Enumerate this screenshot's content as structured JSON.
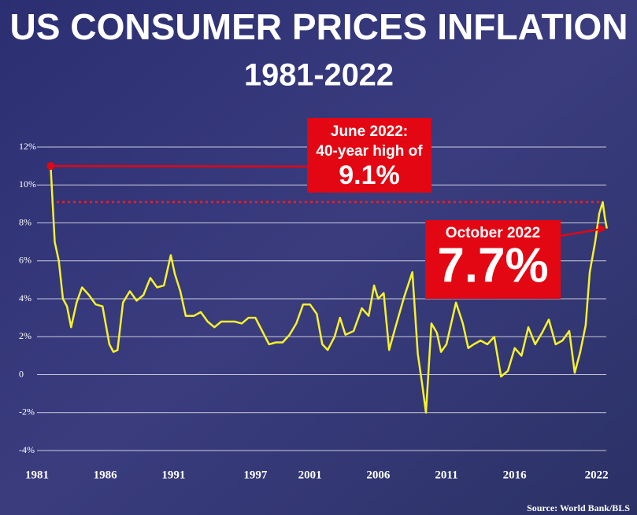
{
  "chart_data": {
    "type": "line",
    "title": "US CONSUMER PRICES INFLATION",
    "subtitle": "1981-2022",
    "source": "Source: World Bank/BLS",
    "annotations": [
      "June 2022:",
      "40-year high of",
      "9.1%",
      "October 2022",
      "7.7%"
    ],
    "reference_value": 9.1,
    "color": "#f7f22a",
    "x": [
      1982.0,
      1982.3,
      1982.6,
      1982.9,
      1983.2,
      1983.5,
      1983.9,
      1984.3,
      1984.8,
      1985.3,
      1985.8,
      1986.3,
      1986.6,
      1986.9,
      1987.3,
      1987.8,
      1988.3,
      1988.8,
      1989.3,
      1989.8,
      1990.3,
      1990.8,
      1991.1,
      1991.5,
      1991.9,
      1992.5,
      1993.0,
      1993.5,
      1994.0,
      1994.5,
      1995.0,
      1995.5,
      1996.0,
      1996.5,
      1997.0,
      1997.5,
      1998.0,
      1998.5,
      1999.0,
      1999.5,
      2000.0,
      2000.5,
      2001.0,
      2001.5,
      2001.9,
      2002.3,
      2002.8,
      2003.2,
      2003.6,
      2004.2,
      2004.8,
      2005.3,
      2005.7,
      2006.0,
      2006.4,
      2006.8,
      2007.3,
      2007.9,
      2008.5,
      2008.9,
      2009.2,
      2009.5,
      2009.9,
      2010.3,
      2010.6,
      2011.0,
      2011.7,
      2012.2,
      2012.6,
      2013.0,
      2013.5,
      2014.0,
      2014.5,
      2015.0,
      2015.5,
      2016.0,
      2016.5,
      2017.0,
      2017.5,
      2018.0,
      2018.5,
      2019.0,
      2019.5,
      2020.0,
      2020.4,
      2020.8,
      2021.2,
      2021.5,
      2021.9,
      2022.2,
      2022.45,
      2022.6,
      2022.75
    ],
    "values": [
      11,
      7,
      6,
      4,
      3.6,
      2.5,
      3.8,
      4.6,
      4.2,
      3.7,
      3.6,
      1.6,
      1.2,
      1.3,
      3.8,
      4.4,
      3.9,
      4.2,
      5.1,
      4.6,
      4.7,
      6.3,
      5.3,
      4.4,
      3.1,
      3.1,
      3.3,
      2.8,
      2.5,
      2.8,
      2.8,
      2.8,
      2.7,
      3.0,
      3.0,
      2.3,
      1.6,
      1.7,
      1.7,
      2.1,
      2.7,
      3.7,
      3.7,
      3.2,
      1.6,
      1.3,
      2.0,
      3.0,
      2.1,
      2.3,
      3.5,
      3.1,
      4.7,
      4.0,
      4.3,
      1.3,
      2.6,
      4.1,
      5.4,
      1.1,
      -0.4,
      -2.0,
      2.7,
      2.2,
      1.2,
      1.6,
      3.8,
      2.7,
      1.4,
      1.6,
      1.8,
      1.6,
      2.0,
      -0.1,
      0.2,
      1.4,
      1.0,
      2.5,
      1.6,
      2.2,
      2.9,
      1.6,
      1.8,
      2.3,
      0.1,
      1.2,
      2.6,
      5.4,
      7.0,
      8.5,
      9.1,
      8.3,
      7.7
    ],
    "xlim": [
      1981,
      2023
    ],
    "xticks": [
      1981,
      1986,
      1991,
      1997,
      2001,
      2006,
      2011,
      2016,
      2022
    ],
    "ylim": [
      -4,
      12
    ],
    "yticks": [
      {
        "value": -4,
        "label": "-4%"
      },
      {
        "value": -2,
        "label": "-2%"
      },
      {
        "value": 0,
        "label": "0"
      },
      {
        "value": 2,
        "label": "2%"
      },
      {
        "value": 4,
        "label": "4%"
      },
      {
        "value": 6,
        "label": "6%"
      },
      {
        "value": 8,
        "label": "8%"
      },
      {
        "value": 10,
        "label": "10%"
      },
      {
        "value": 12,
        "label": "12%"
      }
    ],
    "grid": true
  }
}
